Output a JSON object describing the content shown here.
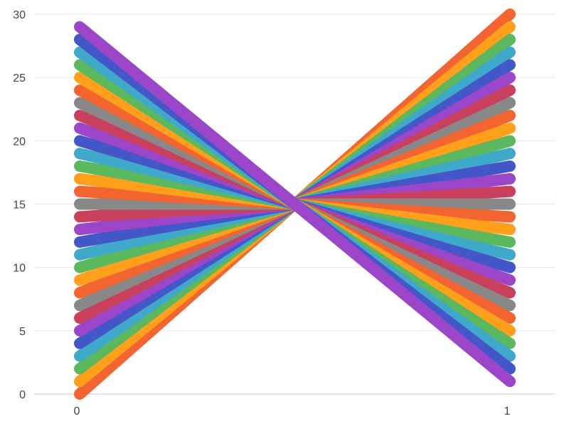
{
  "chart_data": {
    "type": "line",
    "title": "",
    "xlabel": "",
    "ylabel": "",
    "x": [
      0,
      1
    ],
    "xlim": [
      0,
      1
    ],
    "ylim": [
      0,
      30
    ],
    "x_ticks": [
      "0",
      "1"
    ],
    "y_ticks": [
      "0",
      "5",
      "10",
      "15",
      "20",
      "25",
      "30"
    ],
    "grid": "horizontal",
    "legend": "none",
    "palette": [
      "#f26430",
      "#ffa01c",
      "#5cb85c",
      "#3fa9c9",
      "#4457c9",
      "#9b45c8",
      "#c9405c",
      "#888888"
    ],
    "series": [
      {
        "values": [
          0,
          30
        ],
        "color": "#f26430"
      },
      {
        "values": [
          1,
          29
        ],
        "color": "#ffa01c"
      },
      {
        "values": [
          2,
          28
        ],
        "color": "#5cb85c"
      },
      {
        "values": [
          3,
          27
        ],
        "color": "#3fa9c9"
      },
      {
        "values": [
          4,
          26
        ],
        "color": "#4457c9"
      },
      {
        "values": [
          5,
          25
        ],
        "color": "#9b45c8"
      },
      {
        "values": [
          6,
          24
        ],
        "color": "#c9405c"
      },
      {
        "values": [
          7,
          23
        ],
        "color": "#888888"
      },
      {
        "values": [
          8,
          22
        ],
        "color": "#f26430"
      },
      {
        "values": [
          9,
          21
        ],
        "color": "#ffa01c"
      },
      {
        "values": [
          10,
          20
        ],
        "color": "#5cb85c"
      },
      {
        "values": [
          11,
          19
        ],
        "color": "#3fa9c9"
      },
      {
        "values": [
          12,
          18
        ],
        "color": "#4457c9"
      },
      {
        "values": [
          13,
          17
        ],
        "color": "#9b45c8"
      },
      {
        "values": [
          14,
          16
        ],
        "color": "#c9405c"
      },
      {
        "values": [
          15,
          15
        ],
        "color": "#888888"
      },
      {
        "values": [
          16,
          14
        ],
        "color": "#f26430"
      },
      {
        "values": [
          17,
          13
        ],
        "color": "#ffa01c"
      },
      {
        "values": [
          18,
          12
        ],
        "color": "#5cb85c"
      },
      {
        "values": [
          19,
          11
        ],
        "color": "#3fa9c9"
      },
      {
        "values": [
          20,
          10
        ],
        "color": "#4457c9"
      },
      {
        "values": [
          21,
          9
        ],
        "color": "#9b45c8"
      },
      {
        "values": [
          22,
          8
        ],
        "color": "#c9405c"
      },
      {
        "values": [
          23,
          7
        ],
        "color": "#888888"
      },
      {
        "values": [
          24,
          6
        ],
        "color": "#f26430"
      },
      {
        "values": [
          25,
          5
        ],
        "color": "#ffa01c"
      },
      {
        "values": [
          26,
          4
        ],
        "color": "#5cb85c"
      },
      {
        "values": [
          27,
          3
        ],
        "color": "#3fa9c9"
      },
      {
        "values": [
          28,
          2
        ],
        "color": "#4457c9"
      },
      {
        "values": [
          29,
          1
        ],
        "color": "#9b45c8"
      }
    ]
  }
}
